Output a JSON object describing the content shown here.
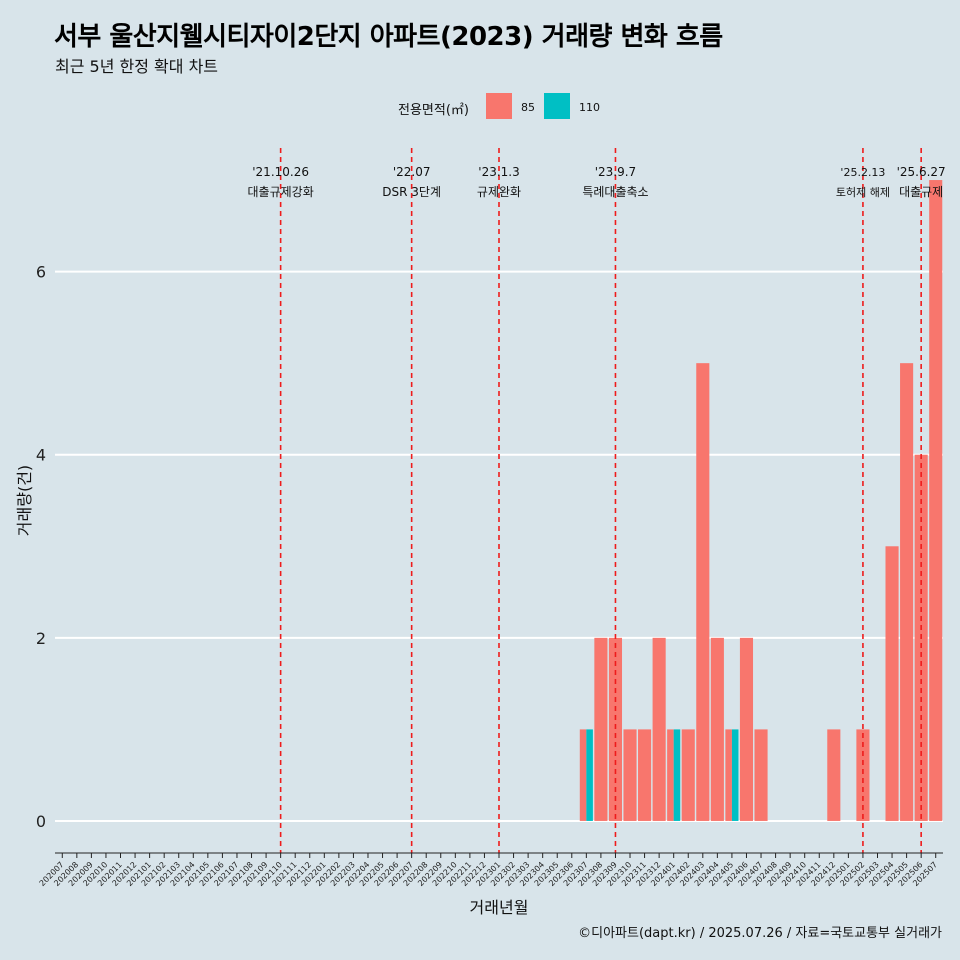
{
  "title": "서부 울산지웰시티자이2단지 아파트(2023) 거래량 변화 흐름",
  "subtitle": "최근 5년 한정 확대 차트",
  "caption": "©디아파트(dapt.kr) / 2025.07.26 / 자료=국토교통부 실거래가",
  "legend": {
    "title": "전용면적(㎡)",
    "items": [
      {
        "label": "85",
        "color": "#f8766d"
      },
      {
        "label": "110",
        "color": "#00bfc4"
      }
    ]
  },
  "chart_data": {
    "type": "bar",
    "stacked": false,
    "grouped_by_month": true,
    "xlabel": "거래년월",
    "ylabel": "거래량(건)",
    "ylim": [
      -0.35,
      7.35
    ],
    "yticks": [
      0,
      2,
      4,
      6
    ],
    "grid": true,
    "legend_position": "top",
    "categories": [
      "202007",
      "202008",
      "202009",
      "202010",
      "202011",
      "202012",
      "202101",
      "202102",
      "202103",
      "202104",
      "202105",
      "202106",
      "202107",
      "202108",
      "202109",
      "202110",
      "202111",
      "202112",
      "202201",
      "202202",
      "202203",
      "202204",
      "202205",
      "202206",
      "202207",
      "202208",
      "202209",
      "202210",
      "202211",
      "202212",
      "202301",
      "202302",
      "202303",
      "202304",
      "202305",
      "202306",
      "202307",
      "202308",
      "202309",
      "202310",
      "202311",
      "202312",
      "202401",
      "202402",
      "202403",
      "202404",
      "202405",
      "202406",
      "202407",
      "202408",
      "202409",
      "202410",
      "202411",
      "202412",
      "202501",
      "202502",
      "202503",
      "202504",
      "202505",
      "202506",
      "202507"
    ],
    "series": [
      {
        "name": "85",
        "color": "#f8766d",
        "points": [
          {
            "x": "202307",
            "y": 1
          },
          {
            "x": "202308",
            "y": 2
          },
          {
            "x": "202309",
            "y": 2
          },
          {
            "x": "202310",
            "y": 1
          },
          {
            "x": "202311",
            "y": 1
          },
          {
            "x": "202312",
            "y": 2
          },
          {
            "x": "202401",
            "y": 1
          },
          {
            "x": "202402",
            "y": 1
          },
          {
            "x": "202403",
            "y": 5
          },
          {
            "x": "202404",
            "y": 2
          },
          {
            "x": "202405",
            "y": 1
          },
          {
            "x": "202406",
            "y": 2
          },
          {
            "x": "202407",
            "y": 1
          },
          {
            "x": "202412",
            "y": 1
          },
          {
            "x": "202502",
            "y": 1
          },
          {
            "x": "202504",
            "y": 3
          },
          {
            "x": "202505",
            "y": 5
          },
          {
            "x": "202506",
            "y": 4
          },
          {
            "x": "202507",
            "y": 7
          }
        ]
      },
      {
        "name": "110",
        "color": "#00bfc4",
        "points": [
          {
            "x": "202307",
            "y": 1
          },
          {
            "x": "202401",
            "y": 1
          },
          {
            "x": "202405",
            "y": 1
          }
        ]
      }
    ],
    "events": [
      {
        "x": "202110",
        "date": "'21.10.26",
        "label": "대출규제강화"
      },
      {
        "x": "202207",
        "date": "'22.07",
        "label": "DSR 3단계"
      },
      {
        "x": "202301",
        "date": "'23.1.3",
        "label": "규제완화"
      },
      {
        "x": "202309",
        "date": "'23.9.7",
        "label": "특례대출축소"
      },
      {
        "x": "202502",
        "date": "'25.2.13",
        "label": "토허제 해제"
      },
      {
        "x": "202506",
        "date": "'25.6.27",
        "label": "대출규제"
      }
    ]
  }
}
